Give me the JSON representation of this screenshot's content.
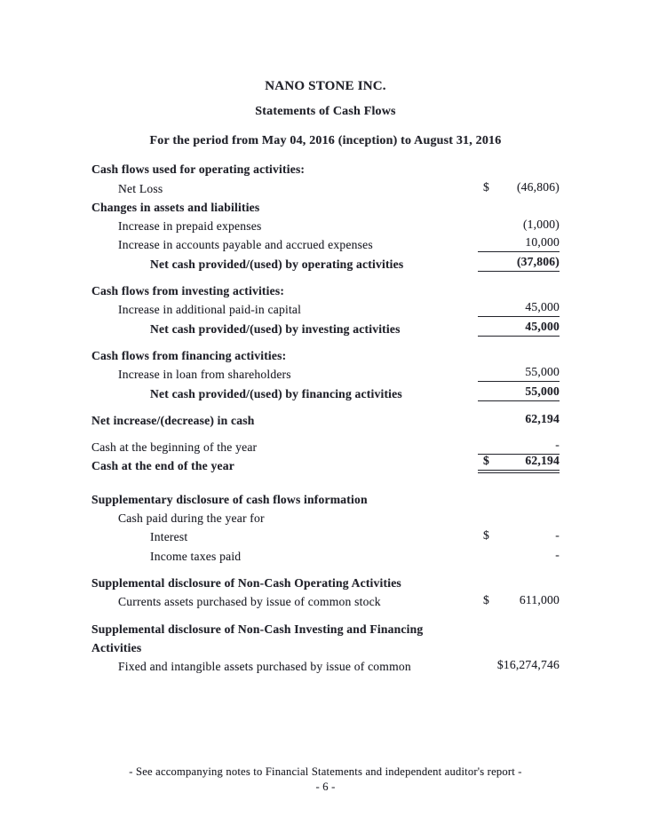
{
  "page": {
    "company": "NANO STONE INC.",
    "document_title": "Statements of Cash Flows",
    "period": "For the period from May 04, 2016 (inception) to August 31, 2016",
    "footer_note": "- See accompanying notes to Financial Statements and independent auditor's report -",
    "page_number": "- 6 -"
  },
  "colors": {
    "text": "#22232b",
    "rule": "#22232b",
    "background": "#ffffff"
  },
  "statement": {
    "rows": [
      {
        "label": "Cash flows used for operating activities:"
      },
      {
        "label": "Net Loss",
        "currency": "$",
        "value": "(46,806)"
      },
      {
        "label": "Changes in assets and liabilities"
      },
      {
        "label": "Increase in prepaid expenses",
        "value": "(1,000)"
      },
      {
        "label": "Increase in accounts payable and accrued expenses",
        "value": "10,000"
      },
      {
        "label": "Net cash provided/(used) by operating activities",
        "value": "(37,806)"
      },
      {
        "label": "Cash flows from investing activities:"
      },
      {
        "label": "Increase in additional paid-in capital",
        "value": "45,000"
      },
      {
        "label": "Net cash provided/(used) by investing activities",
        "value": "45,000"
      },
      {
        "label": "Cash flows from financing activities:"
      },
      {
        "label": "Increase in loan from shareholders",
        "value": "55,000"
      },
      {
        "label": "Net cash provided/(used) by financing activities",
        "value": "55,000"
      },
      {
        "label": "Net increase/(decrease) in cash",
        "value": "62,194"
      },
      {
        "label": "Cash at the beginning of the year",
        "value": "-"
      },
      {
        "label": "Cash at the end of the year",
        "currency": "$",
        "value": "62,194"
      },
      {
        "label": "Supplementary disclosure of cash flows information"
      },
      {
        "label": "Cash paid during the year for"
      },
      {
        "label": "Interest",
        "currency": "$",
        "value": "-"
      },
      {
        "label": "Income taxes paid",
        "value": "-"
      },
      {
        "label": "Supplemental disclosure of Non-Cash Operating Activities"
      },
      {
        "label": "Currents assets purchased by issue of common stock",
        "currency": "$",
        "value": "611,000"
      },
      {
        "label": "Supplemental disclosure of Non-Cash Investing and Financing"
      },
      {
        "label": "Activities"
      },
      {
        "label": "Fixed and intangible assets purchased by issue of common",
        "value": "$16,274,746"
      }
    ]
  }
}
